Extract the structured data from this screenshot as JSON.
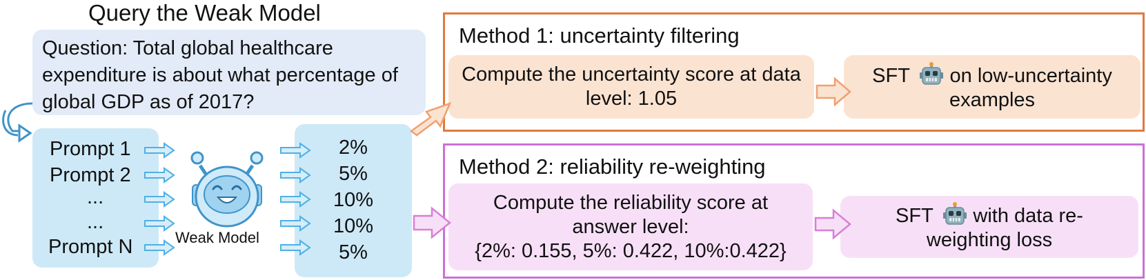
{
  "title": "Query the Weak Model",
  "question": "Question: Total global healthcare expenditure is about what percentage of global GDP as of 2017?",
  "prompts": [
    "Prompt 1",
    "Prompt 2",
    "...",
    "...",
    "Prompt N"
  ],
  "weak_model_label": "Weak Model",
  "answers": [
    "2%",
    "5%",
    "10%",
    "10%",
    "5%"
  ],
  "method1": {
    "title": "Method 1: uncertainty filtering",
    "step1": "Compute the uncertainty score at data level: 1.05",
    "step2_before": "SFT",
    "step2_after": " on low-uncertainty examples"
  },
  "method2": {
    "title": "Method 2: reliability re-weighting",
    "step1_line1": "Compute the reliability score at answer level:",
    "step1_line2": "{2%: 0.155, 5%: 0.422, 10%:0.422}",
    "step2_before": "SFT",
    "step2_after": " with data re-weighting loss"
  },
  "colors": {
    "arrow_blue": "#4fb0e3",
    "method1_border": "#e07a3c",
    "method2_border": "#cc6fd8",
    "peach_fill": "#fbe3d2",
    "pink_fill": "#f7e0f7"
  },
  "icons": [
    "weak-model-robot-icon",
    "strong-model-robot-icon"
  ]
}
